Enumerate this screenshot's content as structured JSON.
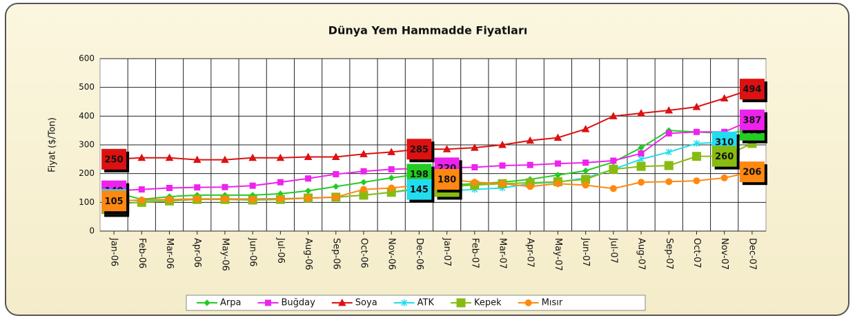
{
  "chart_data": {
    "type": "line",
    "title": "Dünya Yem Hammadde Fiyatları",
    "y_label": "Fiyat ($/Ton)",
    "categories": [
      "Jan-06",
      "Feb-06",
      "Mar-06",
      "Apr-06",
      "May-06",
      "Jun-06",
      "Jul-06",
      "Aug-06",
      "Sep-06",
      "Oct-06",
      "Nov-06",
      "Dec-06",
      "Jan-07",
      "Feb-07",
      "Mar-07",
      "Apr-07",
      "May-07",
      "Jun-07",
      "Jul-07",
      "Aug-07",
      "Sep-07",
      "Oct-07",
      "Nov-07",
      "Dec-07"
    ],
    "ylim": [
      0,
      600
    ],
    "yticks": [
      0,
      100,
      200,
      300,
      400,
      500,
      600
    ],
    "grid": true,
    "legend": "bottom",
    "series": [
      {
        "name": "Arpa",
        "color": "#22cc22",
        "marker": "diamond",
        "values": [
          136,
          110,
          120,
          125,
          125,
          125,
          130,
          140,
          155,
          170,
          185,
          198,
          160,
          165,
          170,
          180,
          195,
          210,
          240,
          290,
          350,
          345,
          340,
          351
        ],
        "value_labels": [
          "136",
          null,
          null,
          null,
          null,
          null,
          null,
          null,
          null,
          null,
          null,
          "198",
          null,
          null,
          null,
          null,
          null,
          null,
          null,
          null,
          null,
          null,
          null,
          "351"
        ]
      },
      {
        "name": "Buğday",
        "color": "#ee22ee",
        "marker": "square",
        "values": [
          140,
          145,
          150,
          152,
          153,
          158,
          170,
          183,
          198,
          208,
          215,
          218,
          220,
          222,
          228,
          230,
          235,
          238,
          245,
          270,
          340,
          345,
          345,
          387
        ],
        "value_labels": [
          "140",
          null,
          null,
          null,
          null,
          null,
          null,
          null,
          null,
          null,
          null,
          null,
          "220",
          null,
          null,
          null,
          null,
          null,
          null,
          null,
          null,
          null,
          null,
          "387"
        ]
      },
      {
        "name": "Soya",
        "color": "#dd1111",
        "marker": "triangle",
        "values": [
          250,
          255,
          255,
          248,
          248,
          255,
          255,
          258,
          258,
          268,
          275,
          285,
          285,
          290,
          300,
          315,
          325,
          355,
          400,
          410,
          420,
          432,
          462,
          494
        ],
        "value_labels": [
          "250",
          null,
          null,
          null,
          null,
          null,
          null,
          null,
          null,
          null,
          null,
          "285",
          null,
          null,
          null,
          null,
          null,
          null,
          null,
          null,
          null,
          null,
          null,
          "494"
        ]
      },
      {
        "name": "ATK",
        "color": "#22ddee",
        "marker": "star",
        "values": [
          110,
          105,
          110,
          112,
          112,
          112,
          113,
          115,
          118,
          125,
          135,
          145,
          140,
          145,
          150,
          165,
          170,
          185,
          215,
          250,
          275,
          305,
          310,
          350
        ],
        "value_labels": [
          "110",
          null,
          null,
          null,
          null,
          null,
          null,
          null,
          null,
          null,
          null,
          "145",
          null,
          null,
          null,
          null,
          null,
          null,
          null,
          null,
          null,
          null,
          "310",
          null
        ]
      },
      {
        "name": "Kepek",
        "color": "#88bb11",
        "marker": "bigsquare",
        "values": [
          95,
          100,
          105,
          110,
          110,
          108,
          110,
          115,
          118,
          125,
          135,
          150,
          155,
          160,
          165,
          168,
          172,
          180,
          215,
          225,
          228,
          260,
          260,
          305
        ],
        "value_labels": [
          "95",
          null,
          null,
          null,
          null,
          null,
          null,
          null,
          null,
          null,
          null,
          null,
          "155",
          null,
          null,
          null,
          null,
          null,
          null,
          null,
          null,
          null,
          "260",
          null
        ]
      },
      {
        "name": "Mısır",
        "color": "#ff8811",
        "marker": "circle",
        "values": [
          105,
          108,
          110,
          112,
          112,
          110,
          112,
          115,
          118,
          145,
          150,
          160,
          180,
          170,
          165,
          155,
          165,
          160,
          148,
          170,
          172,
          175,
          185,
          206
        ],
        "value_labels": [
          "105",
          null,
          null,
          null,
          null,
          null,
          null,
          null,
          null,
          null,
          null,
          null,
          "180",
          null,
          null,
          null,
          null,
          null,
          null,
          null,
          null,
          null,
          null,
          "206"
        ]
      }
    ]
  }
}
